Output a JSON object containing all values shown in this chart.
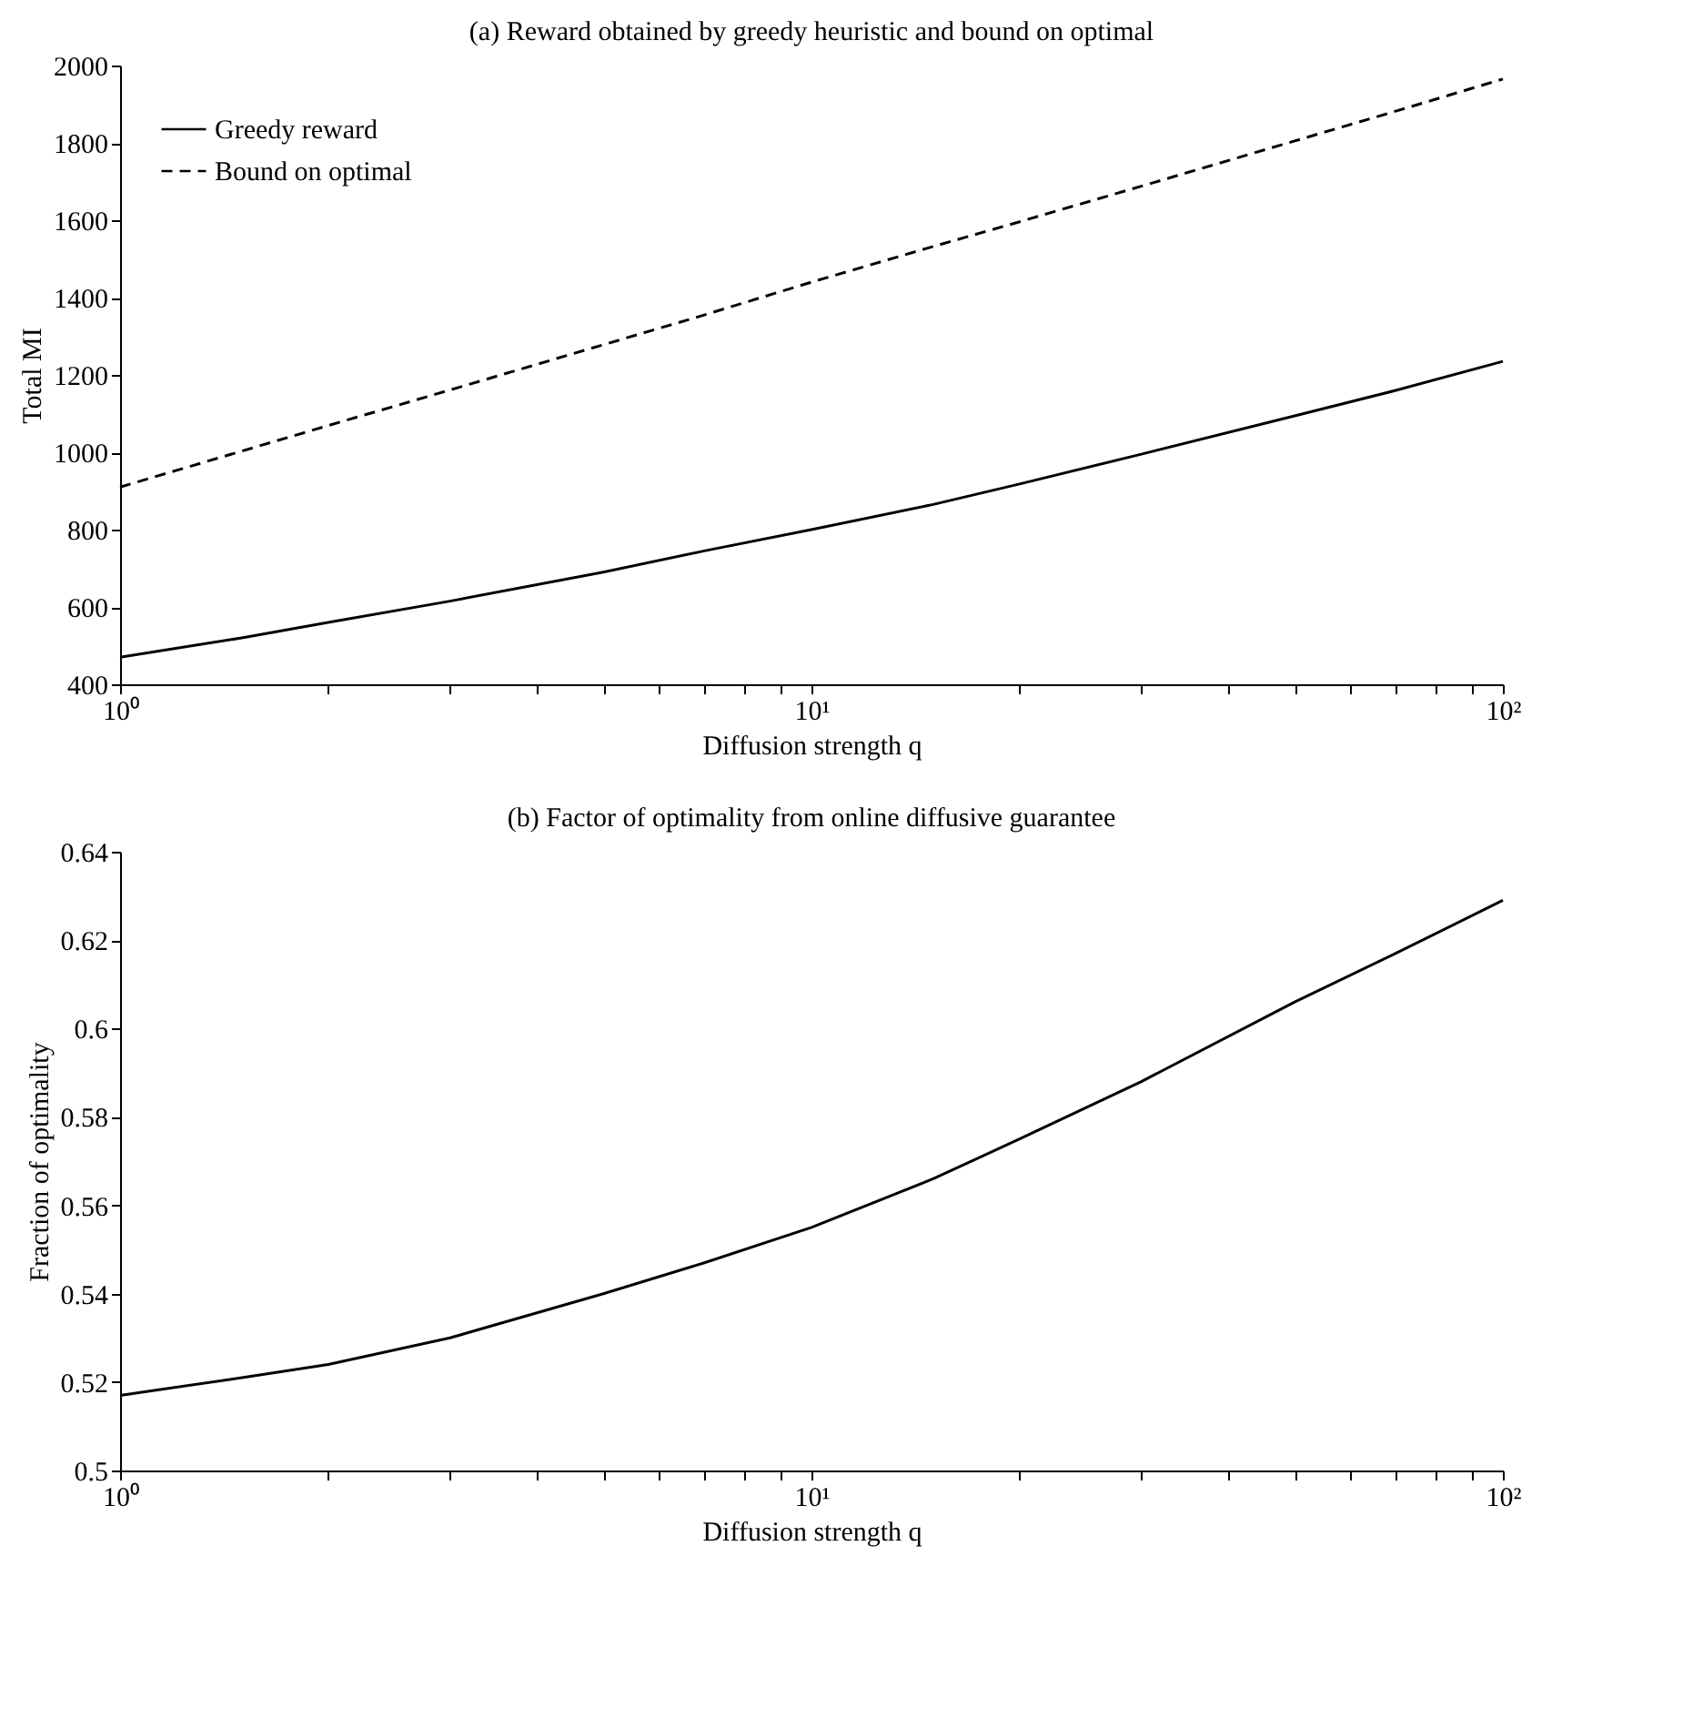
{
  "chart_data": [
    {
      "type": "line",
      "title": "(a) Reward obtained by greedy heuristic and bound on optimal",
      "xlabel": "Diffusion strength q",
      "ylabel": "Total MI",
      "log": "x",
      "grid": false,
      "legend": "top left",
      "marker": "none",
      "x": [
        1,
        1.5,
        2,
        3,
        5,
        7,
        10,
        15,
        20,
        30,
        50,
        70,
        100
      ],
      "xlim": [
        1,
        100
      ],
      "xticks": [
        {
          "value": 1,
          "label": "10⁰"
        },
        {
          "value": 2,
          "label": null
        },
        {
          "value": 3,
          "label": null
        },
        {
          "value": 4,
          "label": null
        },
        {
          "value": 5,
          "label": null
        },
        {
          "value": 6,
          "label": null
        },
        {
          "value": 7,
          "label": null
        },
        {
          "value": 8,
          "label": null
        },
        {
          "value": 9,
          "label": null
        },
        {
          "value": 10,
          "label": "10¹"
        },
        {
          "value": 20,
          "label": null
        },
        {
          "value": 30,
          "label": null
        },
        {
          "value": 40,
          "label": null
        },
        {
          "value": 50,
          "label": null
        },
        {
          "value": 60,
          "label": null
        },
        {
          "value": 70,
          "label": null
        },
        {
          "value": 80,
          "label": null
        },
        {
          "value": 90,
          "label": null
        },
        {
          "value": 100,
          "label": "10²"
        }
      ],
      "ylim": [
        400,
        2000
      ],
      "yticks": [
        400,
        600,
        800,
        1000,
        1200,
        1400,
        1600,
        1800,
        2000
      ],
      "series": [
        {
          "name": "Greedy reward",
          "color": "#000000",
          "line_style": "solid",
          "values": [
            470,
            520,
            560,
            615,
            690,
            745,
            800,
            865,
            918,
            995,
            1094,
            1160,
            1235
          ]
        },
        {
          "name": "Bound on optimal",
          "color": "#000000",
          "line_style": "dashed",
          "values": [
            910,
            1003,
            1069,
            1161,
            1278,
            1355,
            1440,
            1532,
            1596,
            1688,
            1805,
            1882,
            1965
          ]
        }
      ]
    },
    {
      "type": "line",
      "title": "(b) Factor of optimality from online diffusive guarantee",
      "xlabel": "Diffusion strength q",
      "ylabel": "Fraction of optimality",
      "log": "x",
      "grid": false,
      "legend": false,
      "marker": "none",
      "x": [
        1,
        1.5,
        2,
        3,
        5,
        7,
        10,
        15,
        20,
        30,
        50,
        70,
        100
      ],
      "xlim": [
        1,
        100
      ],
      "xticks": [
        {
          "value": 1,
          "label": "10⁰"
        },
        {
          "value": 2,
          "label": null
        },
        {
          "value": 3,
          "label": null
        },
        {
          "value": 4,
          "label": null
        },
        {
          "value": 5,
          "label": null
        },
        {
          "value": 6,
          "label": null
        },
        {
          "value": 7,
          "label": null
        },
        {
          "value": 8,
          "label": null
        },
        {
          "value": 9,
          "label": null
        },
        {
          "value": 10,
          "label": "10¹"
        },
        {
          "value": 20,
          "label": null
        },
        {
          "value": 30,
          "label": null
        },
        {
          "value": 40,
          "label": null
        },
        {
          "value": 50,
          "label": null
        },
        {
          "value": 60,
          "label": null
        },
        {
          "value": 70,
          "label": null
        },
        {
          "value": 80,
          "label": null
        },
        {
          "value": 90,
          "label": null
        },
        {
          "value": 100,
          "label": "10²"
        }
      ],
      "ylim": [
        0.5,
        0.64
      ],
      "yticks": [
        0.5,
        0.52,
        0.54,
        0.56,
        0.58,
        0.6,
        0.62,
        0.64
      ],
      "series": [
        {
          "color": "#000000",
          "line_style": "solid",
          "values": [
            0.517,
            0.521,
            0.524,
            0.53,
            0.54,
            0.547,
            0.555,
            0.566,
            0.575,
            0.588,
            0.606,
            0.617,
            0.629
          ]
        }
      ]
    }
  ]
}
